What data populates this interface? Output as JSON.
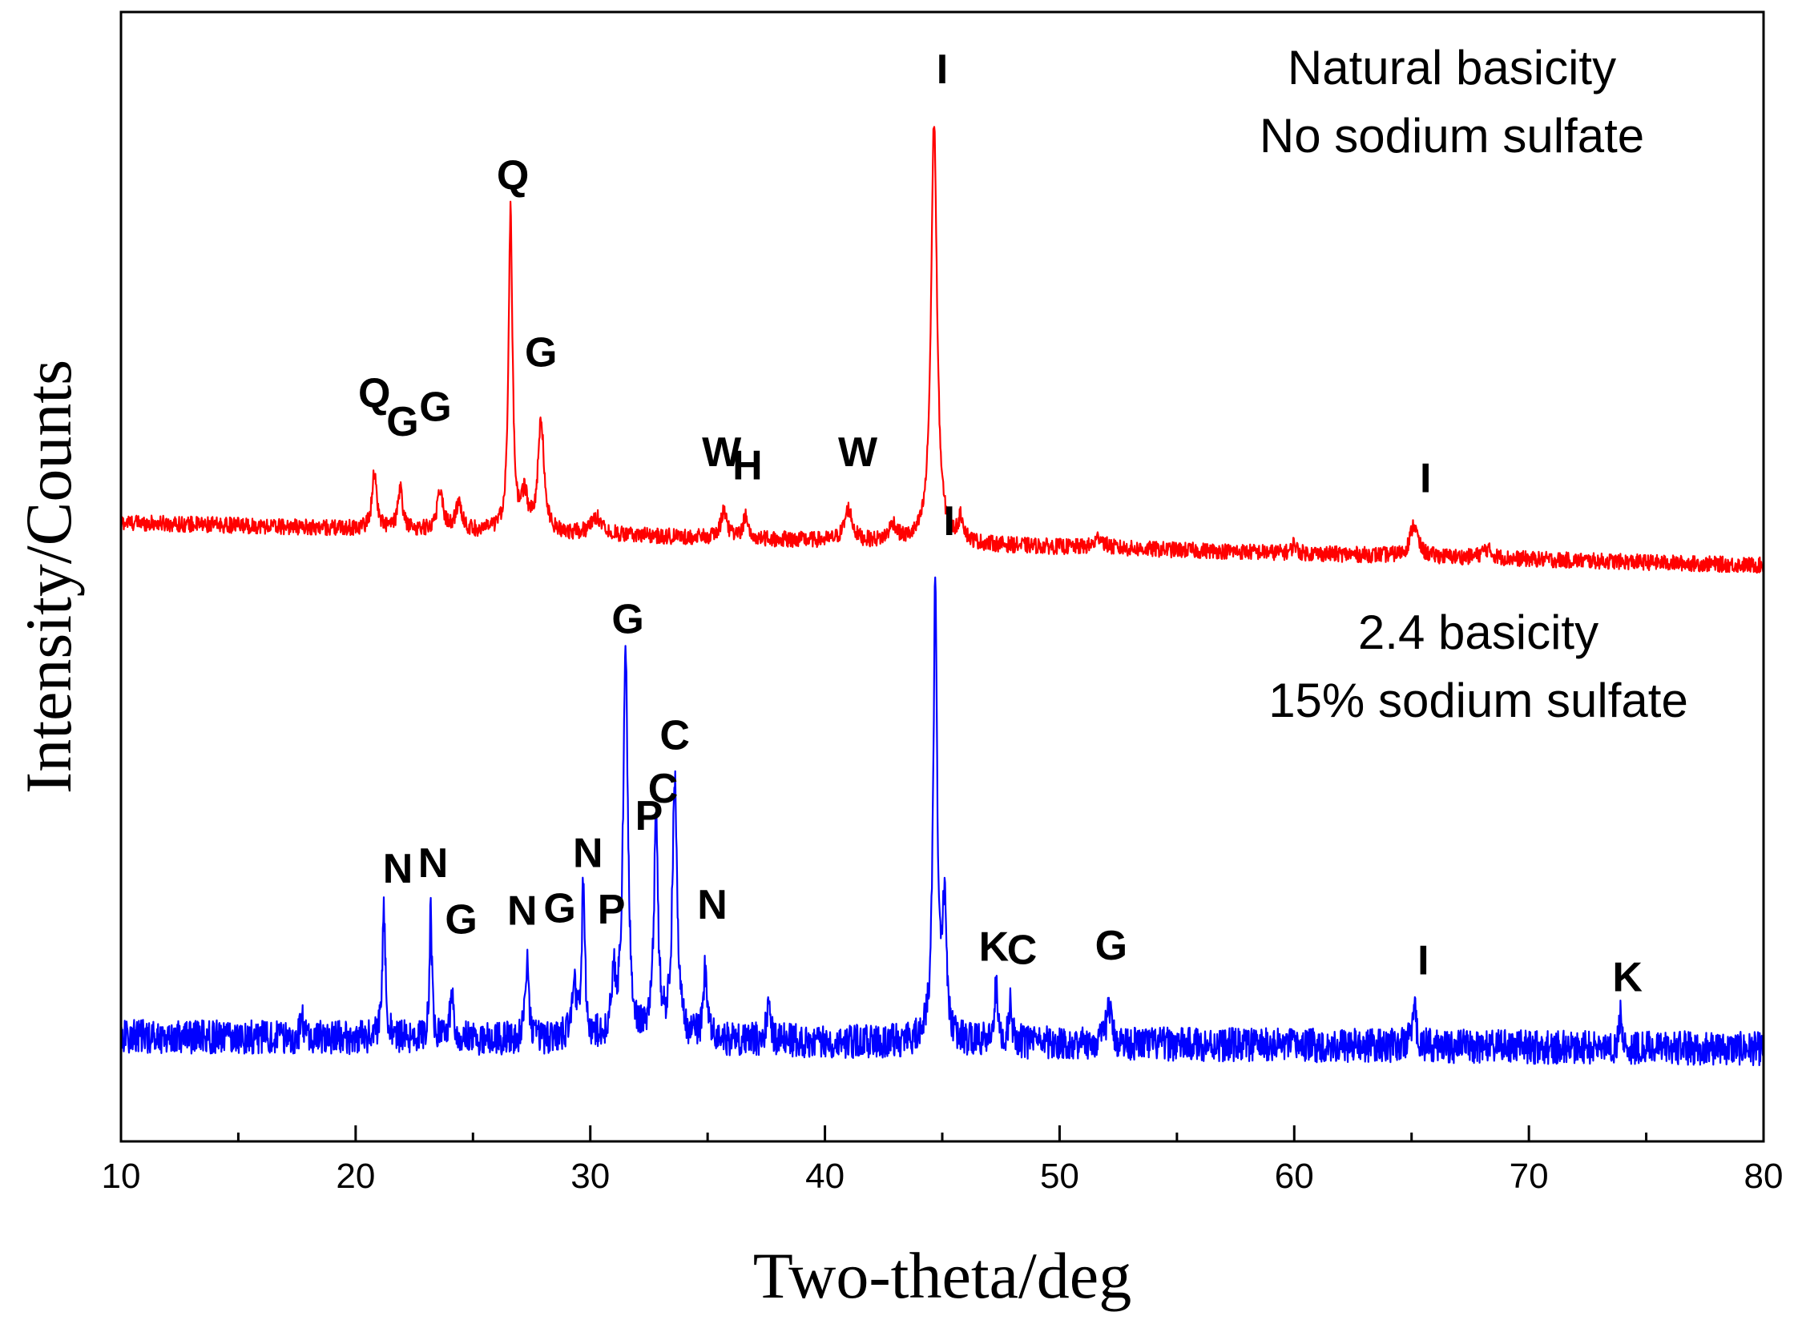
{
  "chart_data": {
    "type": "line",
    "title": "",
    "xlabel": "Two-theta/deg",
    "ylabel": "Intensity/Counts",
    "xlim": [
      10,
      80
    ],
    "ylim": [
      0,
      100
    ],
    "x_ticks": [
      10,
      20,
      30,
      40,
      50,
      60,
      70,
      80
    ],
    "y_ticks_shown": false,
    "grid": false,
    "series": [
      {
        "name": "Natural basicity, No sodium sulfate",
        "color": "#ff0000",
        "baseline_start": 54.8,
        "baseline_end": 51.0,
        "noise": 0.7,
        "peaks": [
          {
            "x": 20.8,
            "h": 5.0,
            "w": 0.12
          },
          {
            "x": 21.9,
            "h": 3.5,
            "w": 0.12
          },
          {
            "x": 23.6,
            "h": 3.5,
            "w": 0.15
          },
          {
            "x": 24.4,
            "h": 2.5,
            "w": 0.15
          },
          {
            "x": 26.6,
            "h": 28.3,
            "w": 0.1
          },
          {
            "x": 27.2,
            "h": 3.0,
            "w": 0.15
          },
          {
            "x": 27.9,
            "h": 10.0,
            "w": 0.15
          },
          {
            "x": 30.3,
            "h": 1.5,
            "w": 0.3
          },
          {
            "x": 35.7,
            "h": 2.5,
            "w": 0.15
          },
          {
            "x": 36.6,
            "h": 2.0,
            "w": 0.1
          },
          {
            "x": 41.0,
            "h": 2.8,
            "w": 0.2
          },
          {
            "x": 42.9,
            "h": 1.5,
            "w": 0.2
          },
          {
            "x": 44.65,
            "h": 37.5,
            "w": 0.15
          },
          {
            "x": 45.8,
            "h": 2.0,
            "w": 0.15
          },
          {
            "x": 51.7,
            "h": 1.0,
            "w": 0.2
          },
          {
            "x": 60.0,
            "h": 0.9,
            "w": 0.1
          },
          {
            "x": 65.1,
            "h": 2.8,
            "w": 0.2
          },
          {
            "x": 68.2,
            "h": 0.8,
            "w": 0.25
          }
        ]
      },
      {
        "name": "2.4 basicity, 15% sodium sulfate",
        "color": "#0000ff",
        "baseline_start": 9.3,
        "baseline_end": 8.2,
        "noise": 1.5,
        "peaks": [
          {
            "x": 17.7,
            "h": 2.0,
            "w": 0.06
          },
          {
            "x": 21.2,
            "h": 11.5,
            "w": 0.08
          },
          {
            "x": 23.2,
            "h": 11.5,
            "w": 0.06
          },
          {
            "x": 24.1,
            "h": 4.5,
            "w": 0.08
          },
          {
            "x": 27.3,
            "h": 7.0,
            "w": 0.08
          },
          {
            "x": 29.3,
            "h": 5.0,
            "w": 0.12
          },
          {
            "x": 29.7,
            "h": 13.0,
            "w": 0.08
          },
          {
            "x": 31.0,
            "h": 5.0,
            "w": 0.1
          },
          {
            "x": 31.5,
            "h": 34.5,
            "w": 0.12
          },
          {
            "x": 32.8,
            "h": 20.0,
            "w": 0.1
          },
          {
            "x": 33.6,
            "h": 23.0,
            "w": 0.12
          },
          {
            "x": 34.9,
            "h": 6.0,
            "w": 0.1
          },
          {
            "x": 37.6,
            "h": 3.0,
            "w": 0.1
          },
          {
            "x": 44.7,
            "h": 40.0,
            "w": 0.1
          },
          {
            "x": 45.1,
            "h": 12.0,
            "w": 0.1
          },
          {
            "x": 47.3,
            "h": 5.0,
            "w": 0.1
          },
          {
            "x": 47.9,
            "h": 3.5,
            "w": 0.08
          },
          {
            "x": 52.1,
            "h": 3.5,
            "w": 0.12
          },
          {
            "x": 65.1,
            "h": 3.8,
            "w": 0.1
          },
          {
            "x": 73.9,
            "h": 3.0,
            "w": 0.06
          }
        ]
      }
    ],
    "annotations": {
      "top_panel": [
        "Natural basicity",
        "No sodium sulfate"
      ],
      "bottom_panel": [
        "2.4 basicity",
        "15% sodium sulfate"
      ],
      "peak_labels_top": [
        {
          "text": "Q",
          "x": 20.8,
          "y": 65.0
        },
        {
          "text": "G",
          "x": 22.0,
          "y": 62.5
        },
        {
          "text": "G",
          "x": 23.4,
          "y": 63.8
        },
        {
          "text": "Q",
          "x": 26.7,
          "y": 84.3
        },
        {
          "text": "G",
          "x": 27.9,
          "y": 68.6
        },
        {
          "text": "W",
          "x": 35.6,
          "y": 59.8
        },
        {
          "text": "H",
          "x": 36.7,
          "y": 58.6
        },
        {
          "text": "W",
          "x": 41.4,
          "y": 59.8
        },
        {
          "text": "I",
          "x": 45.0,
          "y": 93.7
        },
        {
          "text": "I",
          "x": 65.6,
          "y": 57.5
        }
      ],
      "peak_labels_bottom": [
        {
          "text": "N",
          "x": 21.8,
          "y": 22.9
        },
        {
          "text": "N",
          "x": 23.3,
          "y": 23.4
        },
        {
          "text": "G",
          "x": 24.5,
          "y": 18.4
        },
        {
          "text": "N",
          "x": 27.1,
          "y": 19.2
        },
        {
          "text": "G",
          "x": 28.7,
          "y": 19.4
        },
        {
          "text": "N",
          "x": 29.9,
          "y": 24.3
        },
        {
          "text": "P",
          "x": 30.9,
          "y": 19.3
        },
        {
          "text": "G",
          "x": 31.6,
          "y": 45.0
        },
        {
          "text": "P",
          "x": 32.5,
          "y": 27.6
        },
        {
          "text": "C",
          "x": 33.1,
          "y": 30.0
        },
        {
          "text": "C",
          "x": 33.6,
          "y": 34.7
        },
        {
          "text": "N",
          "x": 35.2,
          "y": 19.7
        },
        {
          "text": "I",
          "x": 45.3,
          "y": 53.7
        },
        {
          "text": "K",
          "x": 47.2,
          "y": 16.0
        },
        {
          "text": "C",
          "x": 48.4,
          "y": 15.7
        },
        {
          "text": "G",
          "x": 52.2,
          "y": 16.1
        },
        {
          "text": "I",
          "x": 65.5,
          "y": 14.8
        },
        {
          "text": "K",
          "x": 74.2,
          "y": 13.3
        }
      ]
    }
  }
}
